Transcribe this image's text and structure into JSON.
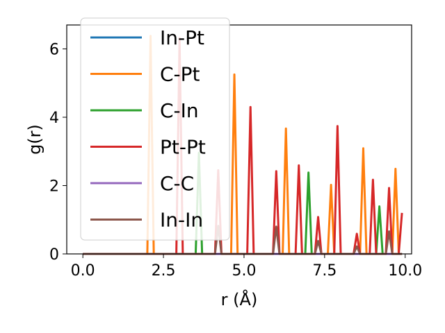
{
  "chart_data": {
    "type": "line",
    "xlabel": "r (Å)",
    "ylabel": "g(r)",
    "xlim": [
      -0.5,
      10.2
    ],
    "ylim": [
      0,
      6.7
    ],
    "xticks": [
      0.0,
      2.5,
      5.0,
      7.5,
      10.0
    ],
    "xtick_labels": [
      "0.0",
      "2.5",
      "5.0",
      "7.5",
      "10.0"
    ],
    "yticks": [
      0,
      2,
      4,
      6
    ],
    "ytick_labels": [
      "0",
      "2",
      "4",
      "6"
    ],
    "grid": false,
    "legend_position": "upper-left",
    "series": [
      {
        "name": "In-Pt",
        "color": "#1f77b4",
        "x": [
          0,
          9.9
        ],
        "y": [
          0,
          0
        ]
      },
      {
        "name": "C-Pt",
        "color": "#ff7f0e",
        "x": [
          0,
          2.0,
          2.1,
          2.2,
          2.4,
          4.6,
          4.7,
          4.8,
          6.2,
          6.3,
          6.4,
          7.6,
          7.7,
          7.8,
          8.6,
          8.7,
          8.8,
          9.6,
          9.7,
          9.8,
          9.9
        ],
        "y": [
          0,
          0,
          6.38,
          0,
          0,
          0,
          5.25,
          0,
          0,
          3.67,
          0,
          0,
          2.02,
          0,
          0,
          3.09,
          0,
          0,
          2.49,
          0,
          0
        ]
      },
      {
        "name": "C-In",
        "color": "#2ca02c",
        "x": [
          0,
          3.5,
          3.6,
          3.7,
          6.9,
          7.0,
          7.1,
          9.1,
          9.2,
          9.3,
          9.9
        ],
        "y": [
          0,
          0,
          2.96,
          0,
          0,
          2.38,
          0,
          0,
          1.39,
          0,
          0
        ]
      },
      {
        "name": "Pt-Pt",
        "color": "#d62728",
        "x": [
          0,
          2.9,
          3.0,
          3.1,
          4.1,
          4.2,
          4.3,
          5.1,
          5.2,
          5.3,
          5.9,
          6.0,
          6.1,
          6.6,
          6.7,
          6.8,
          7.2,
          7.3,
          7.4,
          7.8,
          7.9,
          8.0,
          8.4,
          8.5,
          8.6,
          8.9,
          9.0,
          9.1,
          9.4,
          9.5,
          9.6,
          9.8,
          9.9
        ],
        "y": [
          0,
          0,
          6.32,
          0,
          0,
          2.45,
          0,
          0,
          4.3,
          0,
          0,
          2.42,
          0,
          0,
          2.59,
          0,
          0,
          1.08,
          0,
          0,
          3.74,
          0,
          0,
          0.59,
          0,
          0,
          2.17,
          0,
          0,
          1.93,
          0,
          0,
          1.2
        ]
      },
      {
        "name": "C-C",
        "color": "#9467bd",
        "x": [
          0,
          9.9
        ],
        "y": [
          0,
          0
        ]
      },
      {
        "name": "In-In",
        "color": "#8c564b",
        "x": [
          0,
          4.1,
          4.2,
          4.3,
          5.9,
          6.0,
          6.1,
          7.2,
          7.3,
          7.4,
          8.4,
          8.5,
          8.6,
          9.4,
          9.5,
          9.6,
          9.9
        ],
        "y": [
          0,
          0,
          0.82,
          0,
          0,
          0.8,
          0,
          0,
          0.38,
          0,
          0,
          0.22,
          0,
          0,
          0.66,
          0,
          0
        ]
      }
    ]
  }
}
